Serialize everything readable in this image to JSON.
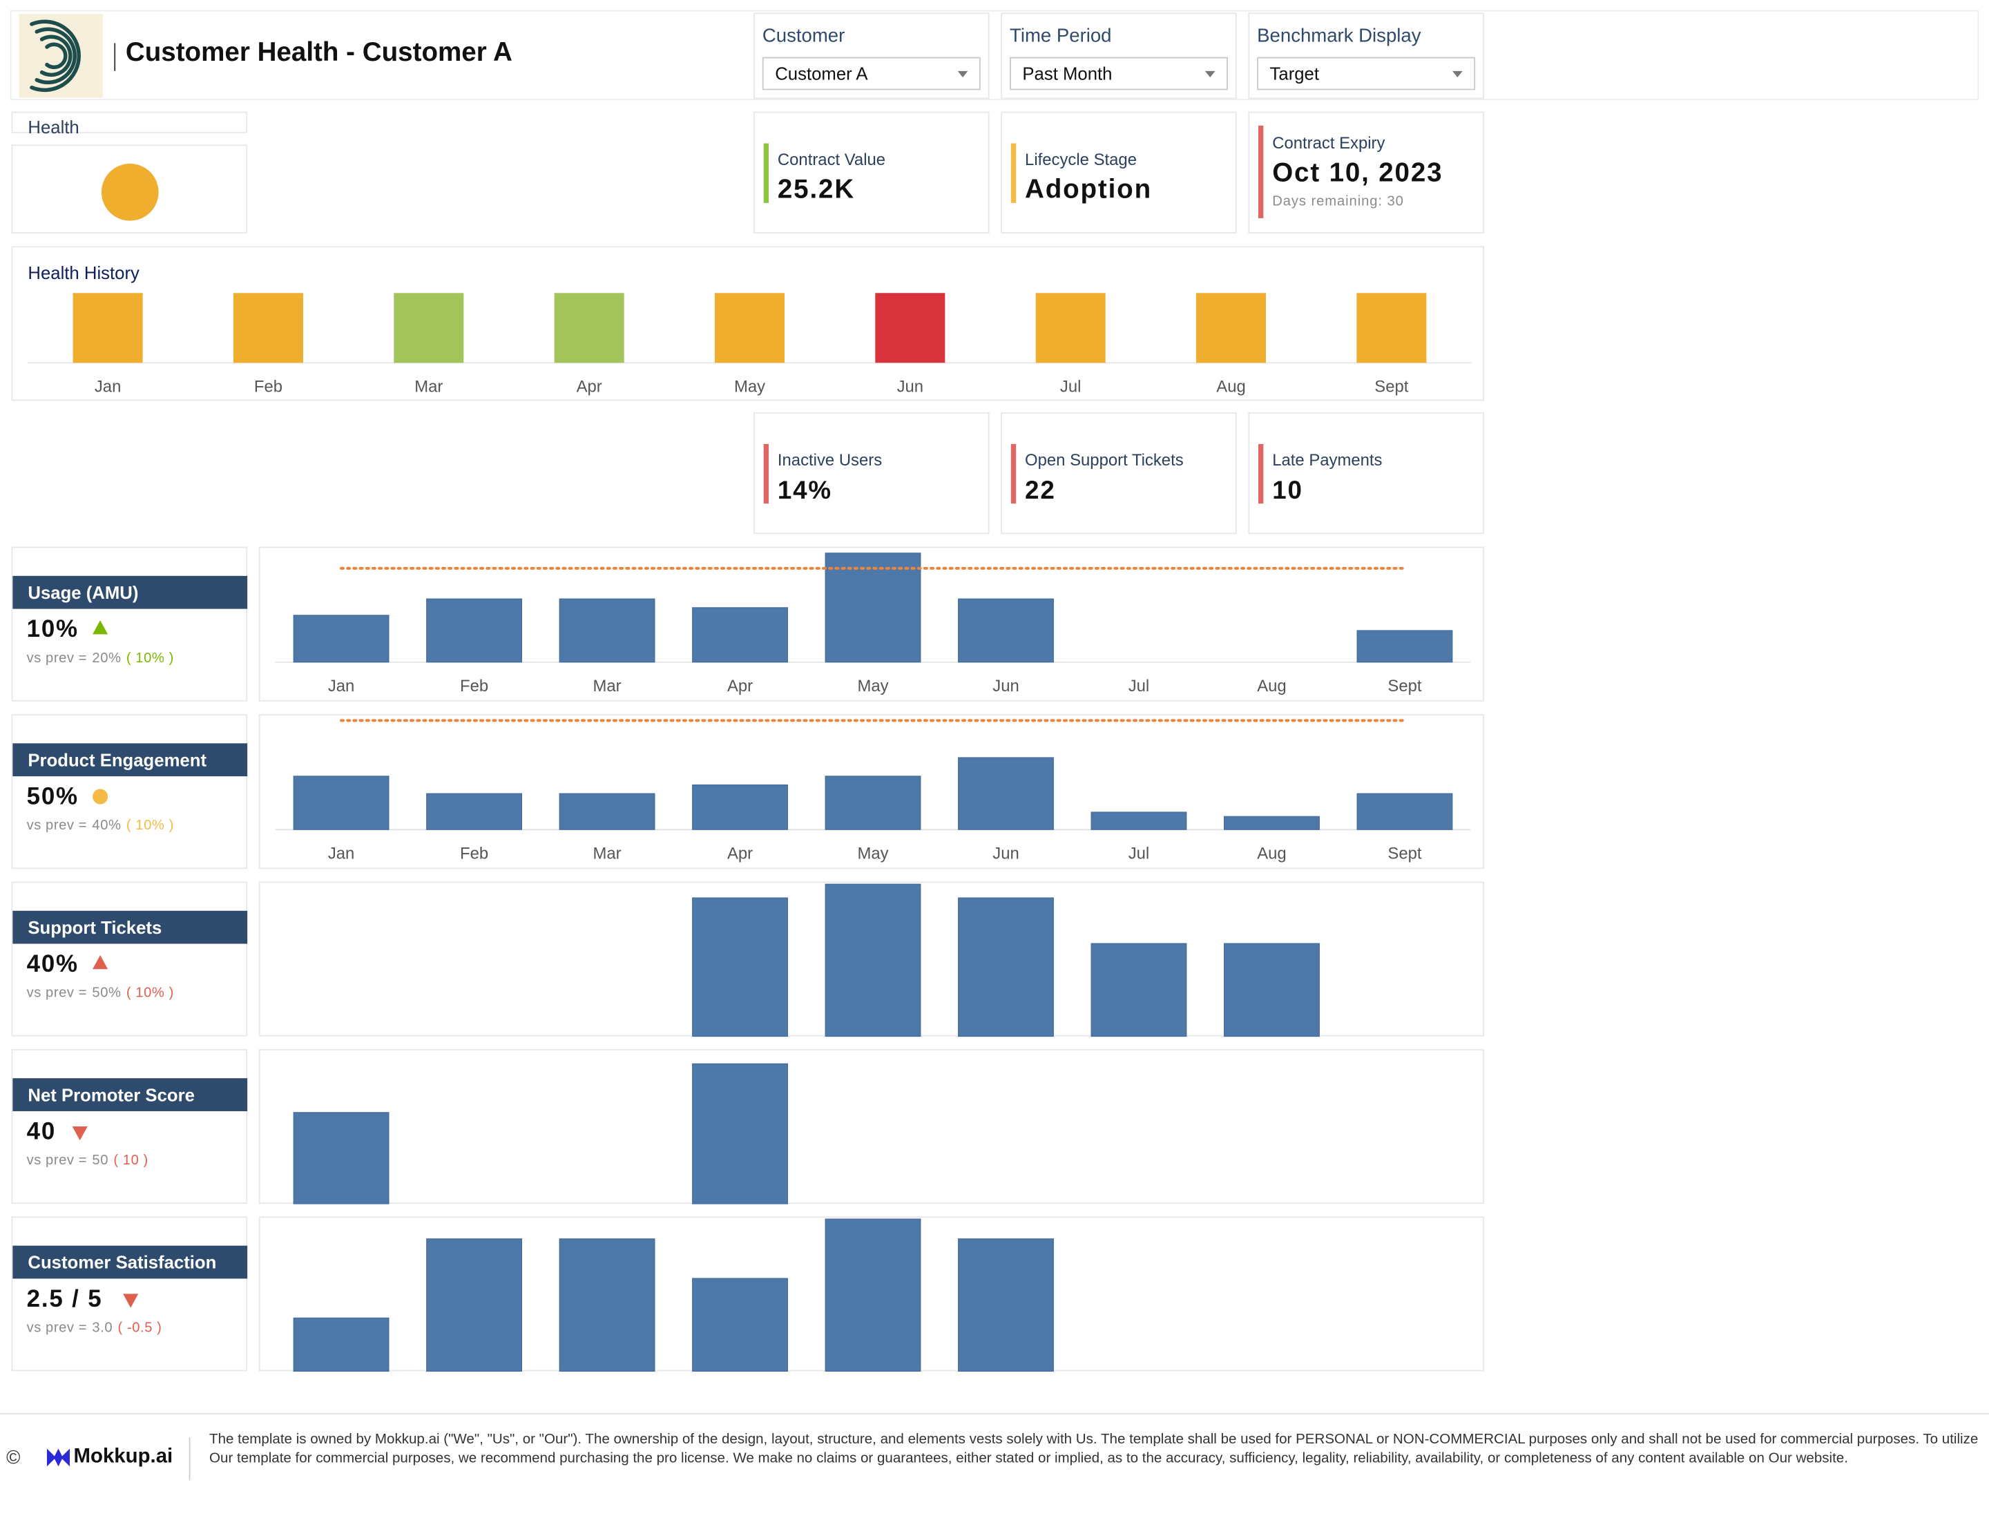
{
  "header": {
    "title": "Customer Health - Customer A"
  },
  "filters": [
    {
      "label": "Customer",
      "value": "Customer A"
    },
    {
      "label": "Time Period",
      "value": "Past Month"
    },
    {
      "label": "Benchmark Display",
      "value": "Target"
    }
  ],
  "health": {
    "label": "Health",
    "status_color": "#f0ae2f"
  },
  "kpis": [
    {
      "label": "Contract Value",
      "value": "25.2K",
      "color": "#8cc63f"
    },
    {
      "label": "Lifecycle Stage",
      "value": "Adoption",
      "color": "#f5b945"
    },
    {
      "label": "Contract Expiry",
      "value": "Oct 10, 2023",
      "sub": "Days remaining: 30",
      "color": "#e06666"
    }
  ],
  "health_history": {
    "title": "Health History",
    "months": [
      "Jan",
      "Feb",
      "Mar",
      "Apr",
      "May",
      "Jun",
      "Jul",
      "Aug",
      "Sept"
    ],
    "colors": [
      "#f0ae2f",
      "#f0ae2f",
      "#a2c45a",
      "#a2c45a",
      "#f0ae2f",
      "#d8323c",
      "#f0ae2f",
      "#f0ae2f",
      "#f0ae2f"
    ]
  },
  "risk_kpis": [
    {
      "label": "Inactive Users",
      "value": "14%",
      "color": "#e06666"
    },
    {
      "label": "Open Support Tickets",
      "value": "22",
      "color": "#e06666"
    },
    {
      "label": "Late Payments",
      "value": "10",
      "color": "#e06666"
    }
  ],
  "metrics": [
    {
      "name": "Usage (AMU)",
      "value": "10%",
      "indicator": "up",
      "indicator_color": "#7ab800",
      "vs_prev_label": "vs prev =",
      "prev": "20%",
      "delta": "( 10% )",
      "delta_color": "#7ab800"
    },
    {
      "name": "Product Engagement",
      "value": "50%",
      "indicator": "dot",
      "indicator_color": "#f5b945",
      "vs_prev_label": "vs prev =",
      "prev": "40%",
      "delta": "( 10% )",
      "delta_color": "#f5b945"
    },
    {
      "name": "Support Tickets",
      "value": "40%",
      "indicator": "up",
      "indicator_color": "#e06050",
      "vs_prev_label": "vs prev =",
      "prev": "50%",
      "delta": "( 10% )",
      "delta_color": "#e06050"
    },
    {
      "name": "Net Promoter Score",
      "value": "40",
      "indicator": "down",
      "indicator_color": "#e06050",
      "vs_prev_label": "vs prev =",
      "prev": "50",
      "delta": "( 10 )",
      "delta_color": "#e06050"
    },
    {
      "name": "Customer Satisfaction",
      "value": "2.5 / 5",
      "indicator": "down",
      "indicator_color": "#e06050",
      "vs_prev_label": "vs prev =",
      "prev": "3.0",
      "delta": "( -0.5 )",
      "delta_color": "#e06050"
    }
  ],
  "chart_data": [
    {
      "type": "bar",
      "metric": "Usage (AMU)",
      "categories": [
        "Jan",
        "Feb",
        "Mar",
        "Apr",
        "May",
        "Jun",
        "Jul",
        "Aug",
        "Sept"
      ],
      "values": [
        43,
        58,
        58,
        50,
        100,
        58,
        0,
        0,
        29
      ],
      "benchmark": 86,
      "ylim": [
        0,
        100
      ],
      "show_labels": true,
      "bar_color": "#4e78a8",
      "benchmark_color": "#f0833a"
    },
    {
      "type": "bar",
      "metric": "Product Engagement",
      "categories": [
        "Jan",
        "Feb",
        "Mar",
        "Apr",
        "May",
        "Jun",
        "Jul",
        "Aug",
        "Sept"
      ],
      "values": [
        49,
        33,
        33,
        41,
        49,
        66,
        16,
        12,
        33
      ],
      "benchmark": 100,
      "ylim": [
        0,
        100
      ],
      "show_labels": true,
      "bar_color": "#4e78a8",
      "benchmark_color": "#f0833a"
    },
    {
      "type": "bar",
      "metric": "Support Tickets",
      "categories": [
        "Jan",
        "Feb",
        "Mar",
        "Apr",
        "May",
        "Jun",
        "Jul",
        "Aug",
        "Sept"
      ],
      "values": [
        0,
        0,
        0,
        91,
        100,
        91,
        61,
        61,
        0
      ],
      "ylim": [
        0,
        100
      ],
      "show_labels": false,
      "bar_color": "#4e78a8"
    },
    {
      "type": "bar",
      "metric": "Net Promoter Score",
      "categories": [
        "Jan",
        "Feb",
        "Mar",
        "Apr",
        "May",
        "Jun",
        "Jul",
        "Aug",
        "Sept"
      ],
      "values": [
        60,
        0,
        0,
        92,
        0,
        0,
        0,
        0,
        0
      ],
      "ylim": [
        0,
        100
      ],
      "show_labels": false,
      "bar_color": "#4e78a8"
    },
    {
      "type": "bar",
      "metric": "Customer Satisfaction",
      "categories": [
        "Jan",
        "Feb",
        "Mar",
        "Apr",
        "May",
        "Jun",
        "Jul",
        "Aug",
        "Sept"
      ],
      "values": [
        35,
        87,
        87,
        61,
        100,
        87,
        0,
        0,
        0
      ],
      "ylim": [
        0,
        100
      ],
      "show_labels": false,
      "bar_color": "#4e78a8"
    }
  ],
  "footer": {
    "copyright": "©",
    "brand": "Mokkup.ai",
    "disclaimer": "The template is owned by Mokkup.ai (\"We\", \"Us\", or \"Our\"). The ownership of the design, layout, structure, and elements vests solely with Us. The template shall be used for PERSONAL or NON-COMMERCIAL purposes only and shall not be used for commercial purposes. To utilize Our template for commercial purposes, we recommend purchasing the pro license. We make no claims or guarantees, either stated or implied, as to the accuracy, sufficiency, legality, reliability, availability, or completeness of any content available on Our website."
  }
}
